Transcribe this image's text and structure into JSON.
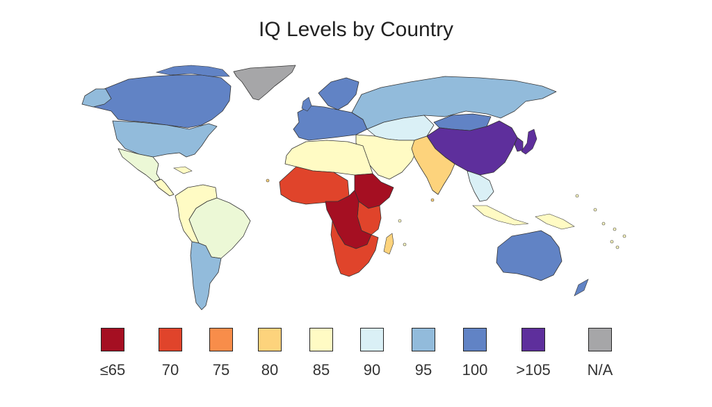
{
  "title": "IQ Levels by Country",
  "legend": [
    {
      "label": "≤65",
      "color": "#a50f22"
    },
    {
      "label": "70",
      "color": "#e0442b"
    },
    {
      "label": "75",
      "color": "#f88d4a"
    },
    {
      "label": "80",
      "color": "#fdd37c"
    },
    {
      "label": "85",
      "color": "#fffbc4"
    },
    {
      "label": "90",
      "color": "#daf0f6"
    },
    {
      "label": "95",
      "color": "#92bbdb"
    },
    {
      "label": "100",
      "color": "#6183c5"
    },
    {
      "label": ">105",
      "color": "#5e2f9c"
    },
    {
      "label": "N/A",
      "color": "#a6a6a8"
    }
  ],
  "colors": {
    "le65": "#a50f22",
    "v70": "#e0442b",
    "v75": "#f88d4a",
    "v80": "#fdd37c",
    "v85": "#fffbc4",
    "v90": "#daf0f6",
    "v95": "#92bbdb",
    "v100": "#6183c5",
    "gt105": "#5e2f9c",
    "na": "#a6a6a8",
    "sa_green": "#ecf8d6"
  },
  "regions": [
    {
      "id": "greenland",
      "cls": "na"
    },
    {
      "id": "canada",
      "cls": "v100"
    },
    {
      "id": "usa",
      "cls": "v95"
    },
    {
      "id": "mexico",
      "cls": "sa_green"
    },
    {
      "id": "central-america",
      "cls": "v85"
    },
    {
      "id": "south-america-north",
      "cls": "v85"
    },
    {
      "id": "brazil",
      "cls": "sa_green"
    },
    {
      "id": "argentina-chile",
      "cls": "v95"
    },
    {
      "id": "scandinavia",
      "cls": "v100"
    },
    {
      "id": "europe",
      "cls": "v100"
    },
    {
      "id": "russia",
      "cls": "v95"
    },
    {
      "id": "central-asia",
      "cls": "v90"
    },
    {
      "id": "china",
      "cls": "gt105"
    },
    {
      "id": "mongolia",
      "cls": "v100"
    },
    {
      "id": "japan",
      "cls": "gt105"
    },
    {
      "id": "korea",
      "cls": "gt105"
    },
    {
      "id": "middle-east",
      "cls": "v85"
    },
    {
      "id": "india",
      "cls": "v80"
    },
    {
      "id": "southeast-asia",
      "cls": "v90"
    },
    {
      "id": "north-africa",
      "cls": "v85"
    },
    {
      "id": "west-africa",
      "cls": "v70"
    },
    {
      "id": "central-africa",
      "cls": "le65"
    },
    {
      "id": "east-africa",
      "cls": "v70"
    },
    {
      "id": "horn-of-africa",
      "cls": "le65"
    },
    {
      "id": "southern-africa",
      "cls": "v70"
    },
    {
      "id": "madagascar",
      "cls": "v80"
    },
    {
      "id": "indonesia",
      "cls": "v85"
    },
    {
      "id": "australia",
      "cls": "v100"
    },
    {
      "id": "new-zealand",
      "cls": "v100"
    }
  ]
}
